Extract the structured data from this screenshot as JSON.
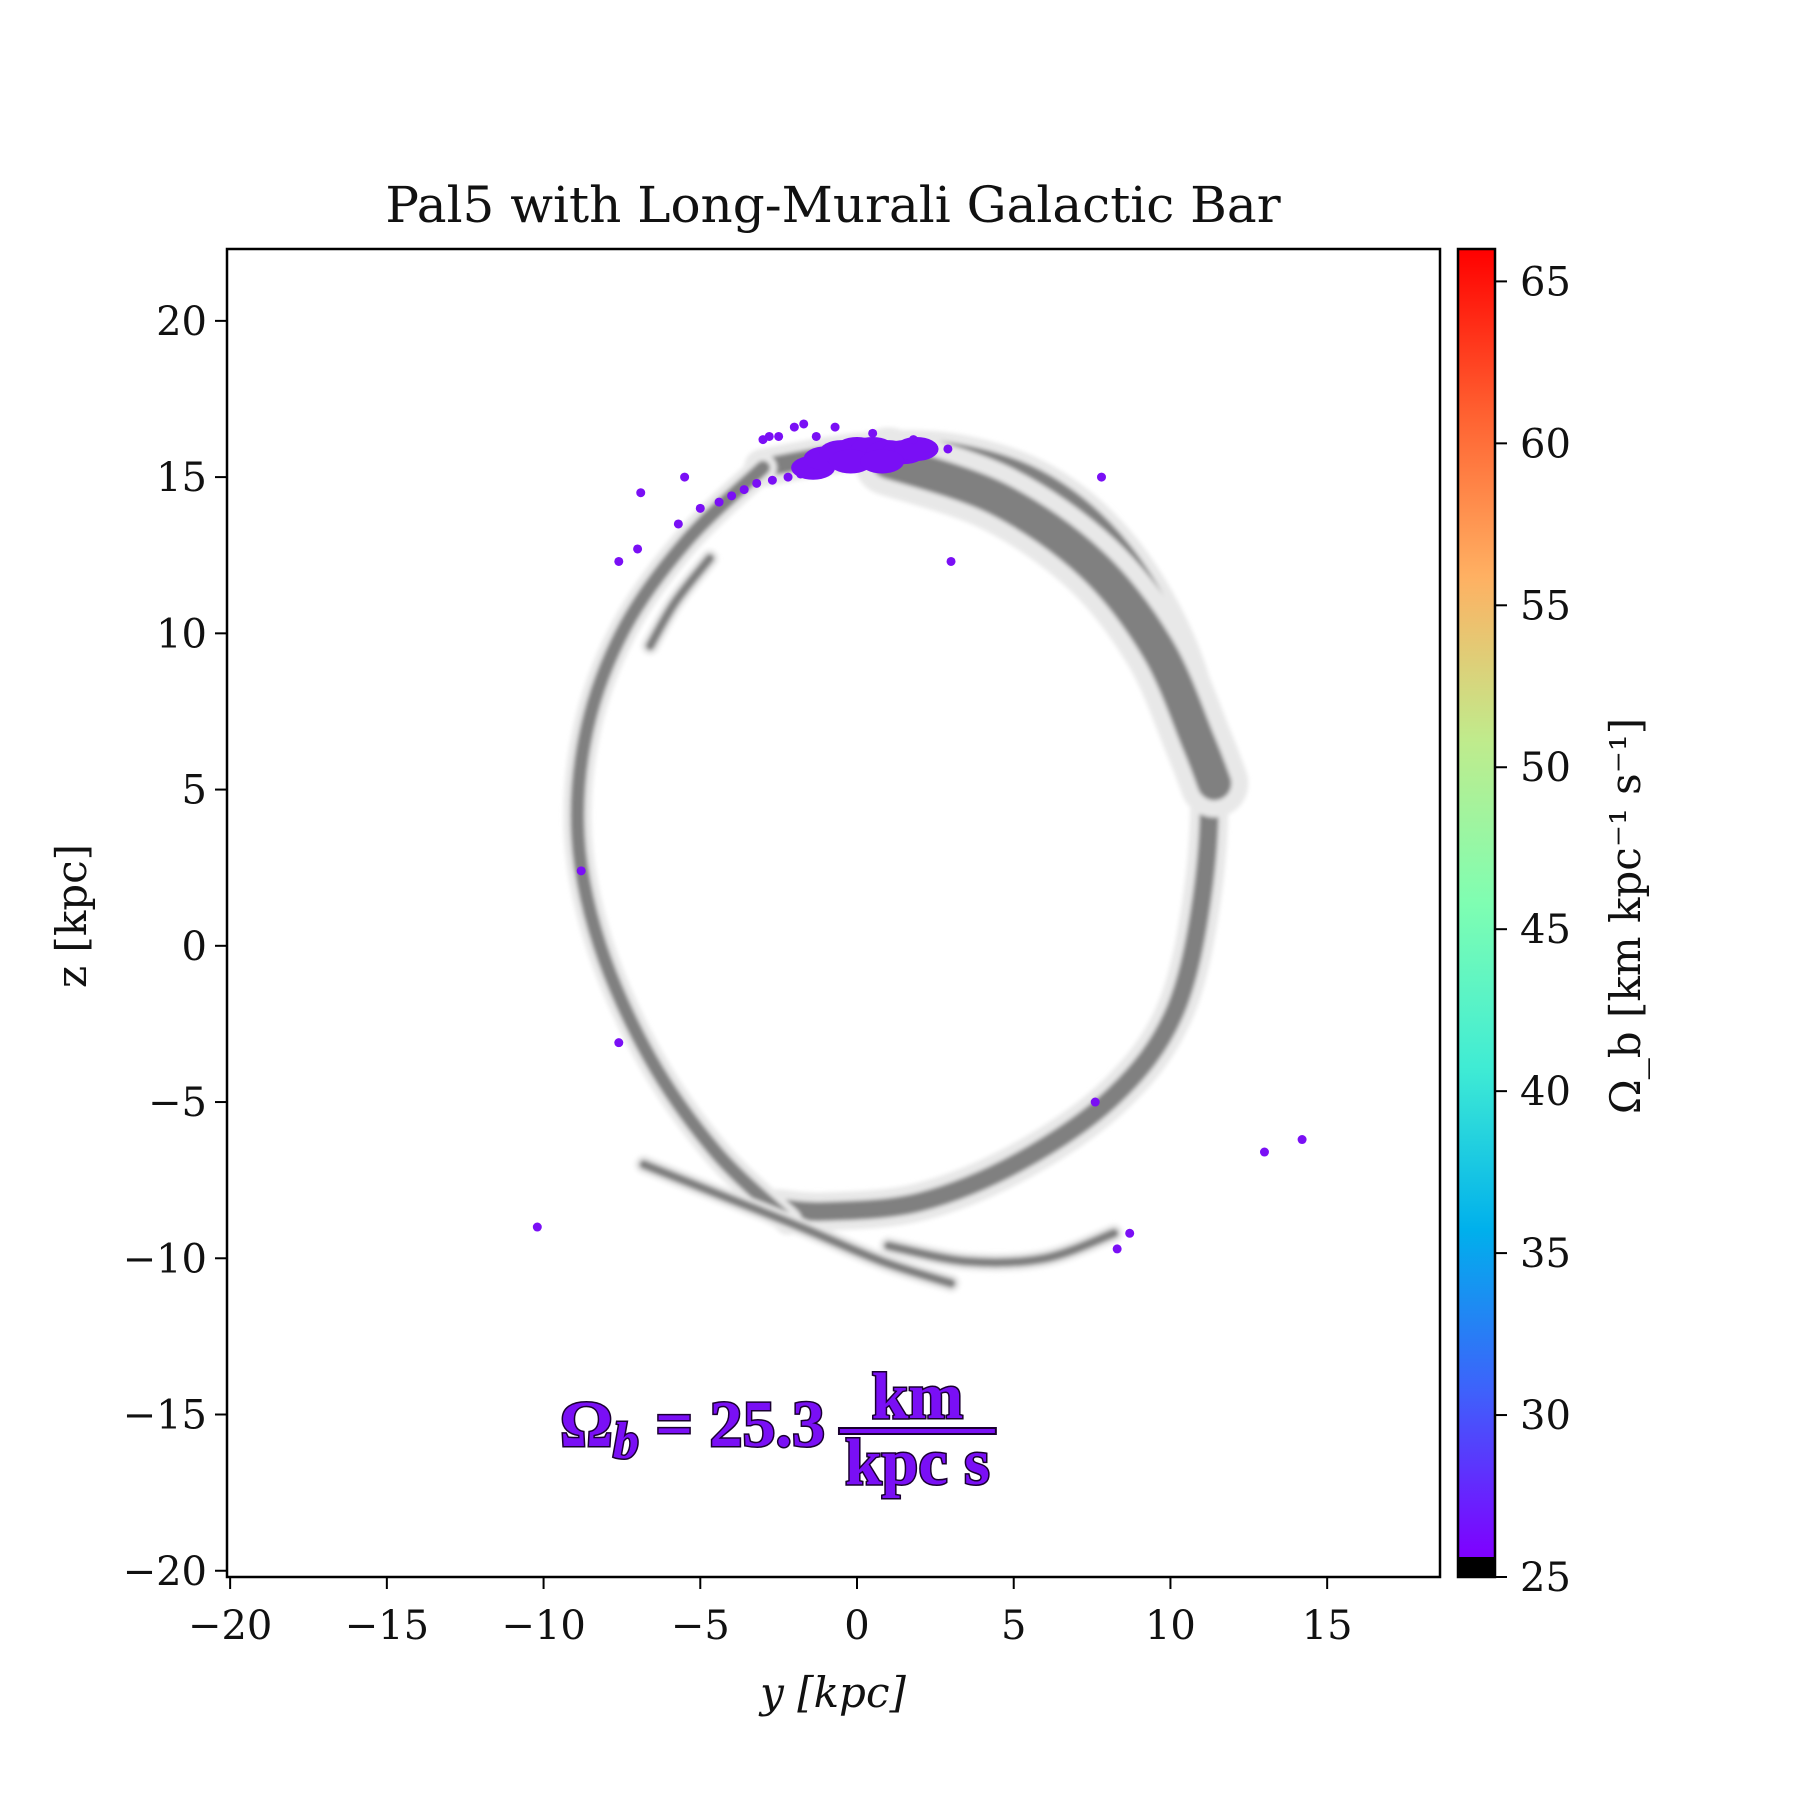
{
  "chart_data": {
    "type": "scatter",
    "title": "Pal5 with Long-Murali Galactic Bar",
    "xlabel": "y [kpc]",
    "ylabel": "z [kpc]",
    "xlim": [
      -20.1,
      18.6
    ],
    "ylim": [
      -20.2,
      22.3
    ],
    "xticks": [
      "−20",
      "−15",
      "−10",
      "−5",
      "0",
      "5",
      "10",
      "15"
    ],
    "xtick_values": [
      -20,
      -15,
      -10,
      -5,
      0,
      5,
      10,
      15
    ],
    "yticks": [
      "−20",
      "−15",
      "−10",
      "−5",
      "0",
      "5",
      "10",
      "15",
      "20"
    ],
    "ytick_values": [
      -20,
      -15,
      -10,
      -5,
      0,
      5,
      10,
      15,
      20
    ],
    "grid": false,
    "colorbar": {
      "label": "Ω_b [km kpc⁻¹ s⁻¹]",
      "colormap": "rainbow",
      "range": [
        25,
        66
      ],
      "under_color": "#000000",
      "ticks": [
        "25",
        "30",
        "35",
        "40",
        "45",
        "50",
        "55",
        "60",
        "65"
      ],
      "tick_values": [
        25,
        30,
        35,
        40,
        45,
        50,
        55,
        60,
        65
      ]
    },
    "annotation": {
      "prefix": "Ω",
      "sub": "b",
      "equals": " = 25.3",
      "numerator": "km",
      "denominator": "kpc s",
      "color": "#7a0ff5"
    },
    "stream_color": "#808080",
    "stream_tracks": [
      {
        "points": [
          [
            -3,
            15.3
          ],
          [
            0,
            15.8
          ],
          [
            3,
            15.8
          ],
          [
            6,
            14.8
          ],
          [
            8.5,
            12.6
          ],
          [
            10.4,
            9.2
          ],
          [
            11.2,
            5.5
          ],
          [
            11,
            1.5
          ],
          [
            10.1,
            -2.2
          ],
          [
            8.2,
            -4.8
          ],
          [
            5.2,
            -6.9
          ],
          [
            2,
            -8.2
          ],
          [
            -1,
            -8.5
          ],
          [
            -2.5,
            -8.4
          ]
        ],
        "weight": 3
      },
      {
        "points": [
          [
            -2.2,
            -8.8
          ],
          [
            -4.5,
            -6.6
          ],
          [
            -6.6,
            -3.6
          ],
          [
            -8.2,
            0
          ],
          [
            -8.9,
            3.5
          ],
          [
            -8.6,
            7
          ],
          [
            -7.4,
            10.2
          ],
          [
            -5.4,
            13
          ],
          [
            -3,
            15.3
          ]
        ],
        "weight": 2
      },
      {
        "points": [
          [
            1,
            15.5
          ],
          [
            4.5,
            14.3
          ],
          [
            7.5,
            12.2
          ],
          [
            9.6,
            9.5
          ],
          [
            10.9,
            6.5
          ],
          [
            11.4,
            5.2
          ]
        ],
        "weight": 6
      },
      {
        "points": [
          [
            -4.7,
            12.4
          ],
          [
            -5.8,
            11
          ],
          [
            -6.6,
            9.6
          ]
        ],
        "weight": 1
      },
      {
        "points": [
          [
            -6.8,
            -7
          ],
          [
            -4.3,
            -8
          ],
          [
            -1.8,
            -9
          ],
          [
            0.8,
            -10.1
          ],
          [
            3,
            -10.8
          ]
        ],
        "weight": 1
      },
      {
        "points": [
          [
            1,
            -9.6
          ],
          [
            3.5,
            -10.1
          ],
          [
            6,
            -10
          ],
          [
            8.2,
            -9.2
          ]
        ],
        "weight": 1
      }
    ],
    "series": [
      {
        "color": "#7a0ff5",
        "omega_b": 25.3,
        "points": [
          [
            -10.2,
            -9.0
          ],
          [
            -8.8,
            2.4
          ],
          [
            -7.6,
            -3.1
          ],
          [
            -7.6,
            12.3
          ],
          [
            -7.0,
            12.7
          ],
          [
            -6.9,
            14.5
          ],
          [
            -5.7,
            13.5
          ],
          [
            -5.5,
            15.0
          ],
          [
            -5.0,
            14.0
          ],
          [
            -4.4,
            14.2
          ],
          [
            -4.0,
            14.4
          ],
          [
            -3.6,
            14.6
          ],
          [
            -3.2,
            14.8
          ],
          [
            -2.7,
            14.9
          ],
          [
            -2.2,
            15.0
          ],
          [
            -1.8,
            15.1
          ],
          [
            3.0,
            12.3
          ],
          [
            2.9,
            15.9
          ],
          [
            7.8,
            15.0
          ],
          [
            7.6,
            -5.0
          ],
          [
            8.3,
            -9.7
          ],
          [
            8.7,
            -9.2
          ],
          [
            13.0,
            -6.6
          ],
          [
            14.2,
            -6.2
          ],
          [
            -3.0,
            16.2
          ],
          [
            -2.8,
            16.3
          ],
          [
            -2.5,
            16.3
          ],
          [
            -2.0,
            16.6
          ],
          [
            -1.7,
            16.7
          ],
          [
            -1.3,
            16.3
          ],
          [
            -0.7,
            16.6
          ],
          [
            0.5,
            16.4
          ],
          [
            1.8,
            16.2
          ]
        ],
        "core": [
          [
            -1.4,
            15.3
          ],
          [
            -1.0,
            15.6
          ],
          [
            -0.5,
            15.8
          ],
          [
            0,
            15.9
          ],
          [
            0.5,
            15.9
          ],
          [
            1.0,
            15.8
          ],
          [
            1.5,
            15.8
          ],
          [
            1.9,
            15.9
          ],
          [
            -0.2,
            15.5
          ],
          [
            0.8,
            15.5
          ]
        ]
      }
    ]
  }
}
